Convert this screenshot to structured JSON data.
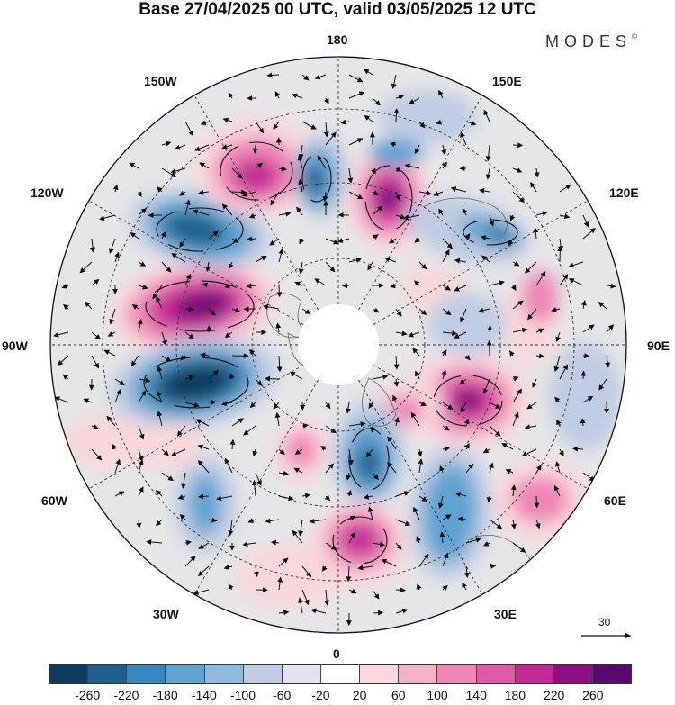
{
  "title": "Base 27/04/2025 00 UTC, valid 03/05/2025 12 UTC",
  "brand": "MODES",
  "brand_mark": "©",
  "longitude_labels": {
    "top": "180",
    "bottom": "0",
    "left": "90W",
    "right": "90E",
    "w150": "150W",
    "e150": "150E",
    "w120": "120W",
    "e120": "120E",
    "w60": "60W",
    "e60": "60E",
    "w30": "30W",
    "e30": "30E"
  },
  "reference_vector": "30",
  "colorbar": {
    "colors": [
      "#0f3b5c",
      "#1d5f8e",
      "#3686c0",
      "#5fa3d1",
      "#91bbde",
      "#c0cce3",
      "#e3e3ef",
      "#ffffff",
      "#f9d7dc",
      "#f4b2c5",
      "#ee86b6",
      "#e05aa8",
      "#c42a95",
      "#8f0f83",
      "#58086e"
    ],
    "ticks": [
      "-260",
      "-220",
      "-180",
      "-140",
      "-100",
      "-60",
      "-20",
      "20",
      "60",
      "100",
      "140",
      "180",
      "220",
      "260"
    ]
  },
  "map_colors": {
    "neutral": "#e6e6e8",
    "pos_weak": "#f9d7dc",
    "pos_mid": "#ee86b6",
    "pos_strong": "#c42a95",
    "pos_core": "#6c0a76",
    "neg_weak": "#c0cce3",
    "neg_mid": "#5fa3d1",
    "neg_strong": "#1d5f8e",
    "neg_core": "#0f3b5c"
  }
}
